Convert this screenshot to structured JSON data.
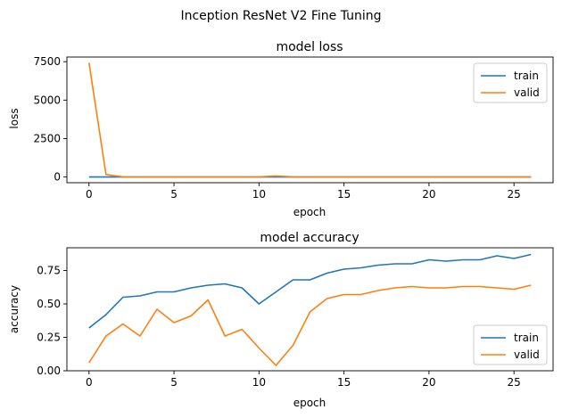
{
  "suptitle": "Inception ResNet V2 Fine Tuning",
  "chart_data": [
    {
      "type": "line",
      "title": "model loss",
      "xlabel": "epoch",
      "ylabel": "loss",
      "xlim": [
        -1.3,
        27.3
      ],
      "ylim": [
        -370,
        7800
      ],
      "xticks": [
        0,
        5,
        10,
        15,
        20,
        25
      ],
      "yticks": [
        0,
        2500,
        5000,
        7500
      ],
      "grid": false,
      "legend_position": "top-right",
      "x": [
        0,
        1,
        2,
        3,
        4,
        5,
        6,
        7,
        8,
        9,
        10,
        11,
        12,
        13,
        14,
        15,
        16,
        17,
        18,
        19,
        20,
        21,
        22,
        23,
        24,
        25,
        26
      ],
      "series": [
        {
          "name": "train",
          "color": "#1f77b4",
          "values": [
            0.5,
            0.5,
            0.4,
            0.4,
            0.4,
            0.4,
            0.4,
            0.4,
            0.4,
            0.4,
            0.4,
            0.4,
            0.4,
            0.4,
            0.4,
            0.4,
            0.4,
            0.4,
            0.4,
            0.4,
            0.4,
            0.4,
            0.4,
            0.4,
            0.4,
            0.4,
            0.4
          ]
        },
        {
          "name": "valid",
          "color": "#ff7f0e",
          "values": [
            7430,
            160,
            10,
            5,
            5,
            5,
            5,
            5,
            5,
            5,
            10,
            70,
            10,
            5,
            5,
            5,
            5,
            5,
            5,
            5,
            5,
            5,
            5,
            5,
            5,
            5,
            5
          ]
        }
      ]
    },
    {
      "type": "line",
      "title": "model accuracy",
      "xlabel": "epoch",
      "ylabel": "accuracy",
      "xlim": [
        -1.3,
        27.3
      ],
      "ylim": [
        0.0,
        0.92
      ],
      "xticks": [
        0,
        5,
        10,
        15,
        20,
        25
      ],
      "yticks": [
        0.0,
        0.25,
        0.5,
        0.75
      ],
      "grid": false,
      "legend_position": "bottom-right",
      "x": [
        0,
        1,
        2,
        3,
        4,
        5,
        6,
        7,
        8,
        9,
        10,
        11,
        12,
        13,
        14,
        15,
        16,
        17,
        18,
        19,
        20,
        21,
        22,
        23,
        24,
        25,
        26
      ],
      "series": [
        {
          "name": "train",
          "color": "#1f77b4",
          "values": [
            0.32,
            0.42,
            0.55,
            0.56,
            0.59,
            0.59,
            0.62,
            0.64,
            0.65,
            0.62,
            0.5,
            0.59,
            0.68,
            0.68,
            0.73,
            0.76,
            0.77,
            0.79,
            0.8,
            0.8,
            0.83,
            0.82,
            0.83,
            0.83,
            0.86,
            0.84,
            0.87
          ]
        },
        {
          "name": "valid",
          "color": "#ff7f0e",
          "values": [
            0.06,
            0.26,
            0.35,
            0.26,
            0.46,
            0.36,
            0.41,
            0.53,
            0.26,
            0.31,
            0.17,
            0.04,
            0.19,
            0.44,
            0.54,
            0.57,
            0.57,
            0.6,
            0.62,
            0.63,
            0.62,
            0.62,
            0.63,
            0.63,
            0.62,
            0.61,
            0.64
          ]
        }
      ]
    }
  ]
}
